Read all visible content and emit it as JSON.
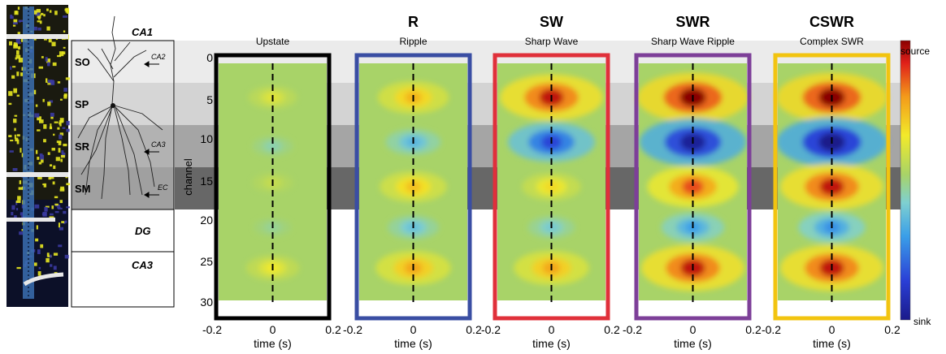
{
  "colors": {
    "layer_SO": "#ebebeb",
    "layer_SP": "#d3d3d3",
    "layer_SR": "#a5a5a5",
    "layer_SM": "#8a8a8a",
    "layer_dark": "#676767",
    "source": "#b00000",
    "sink": "#1a1a8a",
    "background_field": "#a8d368"
  },
  "anatomy": {
    "region_labels": [
      "CA1",
      "DG",
      "CA3"
    ],
    "layer_labels": [
      "SO",
      "SP",
      "SR",
      "SM"
    ],
    "input_labels": [
      "CA2",
      "CA3",
      "EC"
    ]
  },
  "colorbar": {
    "top_label": "source",
    "bottom_label": "sink"
  },
  "chart_data": [
    {
      "type": "heatmap",
      "title": "",
      "subtitle": "Upstate",
      "frame_color": "#000000",
      "xlabel": "time (s)",
      "ylabel": "channel",
      "xlim": [
        -0.2,
        0.2
      ],
      "ylim": [
        0,
        32
      ],
      "x_ticks": [
        "-0.2",
        "0",
        "0.2"
      ],
      "y_ticks": [
        "0",
        "5",
        "10",
        "15",
        "20",
        "25",
        "30"
      ],
      "blobs": [
        {
          "channel": 5,
          "amp": 0.22
        },
        {
          "channel": 11,
          "amp": -0.12
        },
        {
          "channel": 15.5,
          "amp": 0.12
        },
        {
          "channel": 21,
          "amp": -0.08
        },
        {
          "channel": 26,
          "amp": 0.28
        }
      ]
    },
    {
      "type": "heatmap",
      "title": "R",
      "subtitle": "Ripple",
      "frame_color": "#3a4ea3",
      "xlabel": "time (s)",
      "xlim": [
        -0.2,
        0.2
      ],
      "x_ticks": [
        "-0.2",
        "0",
        "0.2"
      ],
      "blobs": [
        {
          "channel": 5,
          "amp": 0.5
        },
        {
          "channel": 10.5,
          "amp": -0.3
        },
        {
          "channel": 16,
          "amp": 0.45
        },
        {
          "channel": 21,
          "amp": -0.25
        },
        {
          "channel": 26,
          "amp": 0.55
        }
      ]
    },
    {
      "type": "heatmap",
      "title": "SW",
      "subtitle": "Sharp Wave",
      "frame_color": "#e0303a",
      "xlabel": "time (s)",
      "xlim": [
        -0.2,
        0.2
      ],
      "x_ticks": [
        "-0.2",
        "0",
        "0.2"
      ],
      "blobs": [
        {
          "channel": 5,
          "amp": 0.9
        },
        {
          "channel": 10.5,
          "amp": -0.7
        },
        {
          "channel": 16,
          "amp": 0.35
        },
        {
          "channel": 21,
          "amp": -0.2
        },
        {
          "channel": 26,
          "amp": 0.55
        }
      ]
    },
    {
      "type": "heatmap",
      "title": "SWR",
      "subtitle": "Sharp Wave Ripple",
      "frame_color": "#7d3f98",
      "xlabel": "time (s)",
      "xlim": [
        -0.2,
        0.2
      ],
      "x_ticks": [
        "-0.2",
        "0",
        "0.2"
      ],
      "blobs": [
        {
          "channel": 5,
          "amp": 1.0
        },
        {
          "channel": 10.5,
          "amp": -0.95
        },
        {
          "channel": 16,
          "amp": 0.75
        },
        {
          "channel": 21,
          "amp": -0.4
        },
        {
          "channel": 26,
          "amp": 0.9
        }
      ]
    },
    {
      "type": "heatmap",
      "title": "CSWR",
      "subtitle": "Complex SWR",
      "frame_color": "#f2c40f",
      "xlabel": "time (s)",
      "xlim": [
        -0.2,
        0.2
      ],
      "x_ticks": [
        "-0.2",
        "0",
        "0.2"
      ],
      "blobs": [
        {
          "channel": 5,
          "amp": 1.0
        },
        {
          "channel": 10.5,
          "amp": -1.0
        },
        {
          "channel": 16,
          "amp": 0.9
        },
        {
          "channel": 21,
          "amp": -0.45
        },
        {
          "channel": 26,
          "amp": 0.9
        }
      ]
    }
  ]
}
